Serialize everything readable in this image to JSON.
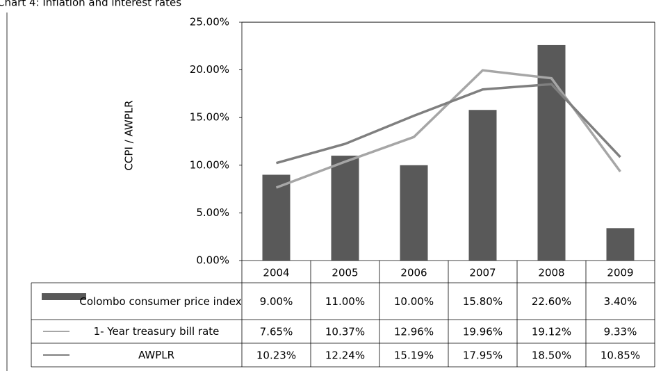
{
  "chart_data": {
    "type": "bar",
    "title": "Chart 4: Inflation and interest rates",
    "y_label": "CCPI / AWPLR",
    "categories": [
      "2004",
      "2005",
      "2006",
      "2007",
      "2008",
      "2009"
    ],
    "ylim": [
      0,
      25
    ],
    "yticks": [
      {
        "value": 0,
        "label": "0.00%"
      },
      {
        "value": 5,
        "label": "5.00%"
      },
      {
        "value": 10,
        "label": "10.00%"
      },
      {
        "value": 15,
        "label": "15.00%"
      },
      {
        "value": 20,
        "label": "20.00%"
      },
      {
        "value": 25,
        "label": "25.00%"
      }
    ],
    "grid": false,
    "series": [
      {
        "name": "Colombo consumer price index",
        "type": "bar",
        "color": "#595959",
        "values": [
          9.0,
          11.0,
          10.0,
          15.8,
          22.6,
          3.4
        ],
        "value_labels": [
          "9.00%",
          "11.00%",
          "10.00%",
          "15.80%",
          "22.60%",
          "3.40%"
        ]
      },
      {
        "name": "1- Year treasury bill rate",
        "type": "line",
        "color": "#a6a6a6",
        "values": [
          7.65,
          10.37,
          12.96,
          19.96,
          19.12,
          9.33
        ],
        "value_labels": [
          "7.65%",
          "10.37%",
          "12.96%",
          "19.96%",
          "19.12%",
          "9.33%"
        ]
      },
      {
        "name": "AWPLR",
        "type": "line",
        "color": "#7f7f7f",
        "values": [
          10.23,
          12.24,
          15.19,
          17.95,
          18.5,
          10.85
        ],
        "value_labels": [
          "10.23%",
          "12.24%",
          "15.19%",
          "17.95%",
          "18.50%",
          "10.85%"
        ]
      }
    ]
  }
}
